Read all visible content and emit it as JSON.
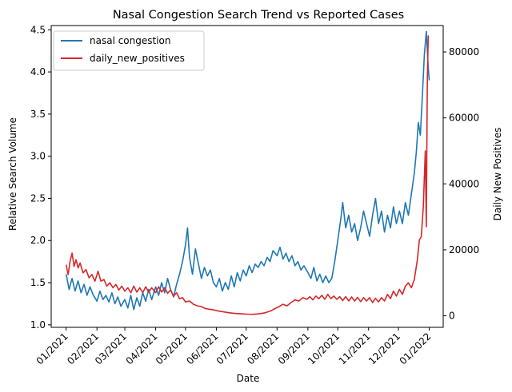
{
  "chart_data": {
    "type": "line",
    "title": "Nasal Congestion Search Trend vs Reported Cases",
    "xlabel": "Date",
    "ylabel_left": "Relative Search Volume",
    "ylabel_right": "Daily New Positives",
    "x_tick_labels": [
      "01/2021",
      "02/2021",
      "03/2021",
      "04/2021",
      "05/2021",
      "06/2021",
      "07/2021",
      "08/2021",
      "09/2021",
      "10/2021",
      "11/2021",
      "12/2021",
      "01/2022"
    ],
    "y_left_ticks": [
      1.0,
      1.5,
      2.0,
      2.5,
      3.0,
      3.5,
      4.0,
      4.5
    ],
    "y_right_ticks": [
      0,
      20000,
      40000,
      60000,
      80000
    ],
    "y_left_range": [
      0.97,
      4.55
    ],
    "y_right_range": [
      -3500,
      88000
    ],
    "x_range": [
      "2020-12-17",
      "2022-01-15"
    ],
    "legend_position": "upper-left",
    "colors": {
      "search": "#1f77b4",
      "cases": "#d62728"
    },
    "series": [
      {
        "name": "nasal congestion",
        "axis": "left",
        "points": [
          [
            "2021-01-01",
            1.6
          ],
          [
            "2021-01-04",
            1.42
          ],
          [
            "2021-01-07",
            1.55
          ],
          [
            "2021-01-10",
            1.4
          ],
          [
            "2021-01-13",
            1.52
          ],
          [
            "2021-01-16",
            1.38
          ],
          [
            "2021-01-19",
            1.48
          ],
          [
            "2021-01-22",
            1.35
          ],
          [
            "2021-01-25",
            1.45
          ],
          [
            "2021-01-28",
            1.36
          ],
          [
            "2021-02-01",
            1.28
          ],
          [
            "2021-02-04",
            1.4
          ],
          [
            "2021-02-07",
            1.3
          ],
          [
            "2021-02-10",
            1.35
          ],
          [
            "2021-02-13",
            1.27
          ],
          [
            "2021-02-16",
            1.38
          ],
          [
            "2021-02-19",
            1.25
          ],
          [
            "2021-02-22",
            1.33
          ],
          [
            "2021-02-25",
            1.22
          ],
          [
            "2021-03-01",
            1.3
          ],
          [
            "2021-03-04",
            1.2
          ],
          [
            "2021-03-07",
            1.35
          ],
          [
            "2021-03-10",
            1.18
          ],
          [
            "2021-03-13",
            1.32
          ],
          [
            "2021-03-16",
            1.22
          ],
          [
            "2021-03-19",
            1.38
          ],
          [
            "2021-03-22",
            1.28
          ],
          [
            "2021-03-25",
            1.42
          ],
          [
            "2021-03-28",
            1.3
          ],
          [
            "2021-04-01",
            1.45
          ],
          [
            "2021-04-04",
            1.35
          ],
          [
            "2021-04-07",
            1.5
          ],
          [
            "2021-04-10",
            1.38
          ],
          [
            "2021-04-13",
            1.55
          ],
          [
            "2021-04-16",
            1.42
          ],
          [
            "2021-04-19",
            1.33
          ],
          [
            "2021-04-22",
            1.48
          ],
          [
            "2021-04-25",
            1.6
          ],
          [
            "2021-04-28",
            1.75
          ],
          [
            "2021-05-01",
            1.95
          ],
          [
            "2021-05-03",
            2.15
          ],
          [
            "2021-05-05",
            1.8
          ],
          [
            "2021-05-08",
            1.6
          ],
          [
            "2021-05-11",
            1.9
          ],
          [
            "2021-05-14",
            1.72
          ],
          [
            "2021-05-17",
            1.55
          ],
          [
            "2021-05-20",
            1.68
          ],
          [
            "2021-05-23",
            1.58
          ],
          [
            "2021-05-26",
            1.65
          ],
          [
            "2021-05-29",
            1.5
          ],
          [
            "2021-06-01",
            1.45
          ],
          [
            "2021-06-04",
            1.55
          ],
          [
            "2021-06-07",
            1.4
          ],
          [
            "2021-06-10",
            1.5
          ],
          [
            "2021-06-13",
            1.42
          ],
          [
            "2021-06-16",
            1.58
          ],
          [
            "2021-06-19",
            1.45
          ],
          [
            "2021-06-22",
            1.62
          ],
          [
            "2021-06-25",
            1.52
          ],
          [
            "2021-06-28",
            1.65
          ],
          [
            "2021-07-01",
            1.58
          ],
          [
            "2021-07-04",
            1.7
          ],
          [
            "2021-07-07",
            1.62
          ],
          [
            "2021-07-10",
            1.72
          ],
          [
            "2021-07-13",
            1.68
          ],
          [
            "2021-07-16",
            1.75
          ],
          [
            "2021-07-19",
            1.7
          ],
          [
            "2021-07-22",
            1.8
          ],
          [
            "2021-07-25",
            1.75
          ],
          [
            "2021-07-28",
            1.88
          ],
          [
            "2021-08-01",
            1.82
          ],
          [
            "2021-08-04",
            1.92
          ],
          [
            "2021-08-07",
            1.78
          ],
          [
            "2021-08-10",
            1.85
          ],
          [
            "2021-08-13",
            1.75
          ],
          [
            "2021-08-16",
            1.82
          ],
          [
            "2021-08-19",
            1.7
          ],
          [
            "2021-08-22",
            1.75
          ],
          [
            "2021-08-25",
            1.65
          ],
          [
            "2021-08-28",
            1.7
          ],
          [
            "2021-09-01",
            1.62
          ],
          [
            "2021-09-04",
            1.55
          ],
          [
            "2021-09-07",
            1.68
          ],
          [
            "2021-09-10",
            1.52
          ],
          [
            "2021-09-13",
            1.6
          ],
          [
            "2021-09-16",
            1.5
          ],
          [
            "2021-09-19",
            1.58
          ],
          [
            "2021-09-22",
            1.5
          ],
          [
            "2021-09-25",
            1.55
          ],
          [
            "2021-09-28",
            1.75
          ],
          [
            "2021-10-01",
            2.0
          ],
          [
            "2021-10-04",
            2.25
          ],
          [
            "2021-10-06",
            2.45
          ],
          [
            "2021-10-09",
            2.15
          ],
          [
            "2021-10-12",
            2.3
          ],
          [
            "2021-10-15",
            2.1
          ],
          [
            "2021-10-18",
            2.2
          ],
          [
            "2021-10-21",
            2.0
          ],
          [
            "2021-10-24",
            2.15
          ],
          [
            "2021-10-27",
            2.35
          ],
          [
            "2021-10-30",
            2.2
          ],
          [
            "2021-11-02",
            2.05
          ],
          [
            "2021-11-05",
            2.3
          ],
          [
            "2021-11-08",
            2.5
          ],
          [
            "2021-11-11",
            2.2
          ],
          [
            "2021-11-14",
            2.35
          ],
          [
            "2021-11-17",
            2.1
          ],
          [
            "2021-11-20",
            2.3
          ],
          [
            "2021-11-23",
            2.15
          ],
          [
            "2021-11-26",
            2.4
          ],
          [
            "2021-11-29",
            2.2
          ],
          [
            "2021-12-02",
            2.35
          ],
          [
            "2021-12-05",
            2.2
          ],
          [
            "2021-12-08",
            2.45
          ],
          [
            "2021-12-11",
            2.3
          ],
          [
            "2021-12-14",
            2.55
          ],
          [
            "2021-12-17",
            2.8
          ],
          [
            "2021-12-19",
            3.05
          ],
          [
            "2021-12-21",
            3.4
          ],
          [
            "2021-12-23",
            3.25
          ],
          [
            "2021-12-25",
            3.7
          ],
          [
            "2021-12-27",
            4.2
          ],
          [
            "2021-12-29",
            4.48
          ],
          [
            "2021-12-31",
            4.05
          ],
          [
            "2022-01-01",
            3.9
          ]
        ]
      },
      {
        "name": "daily_new_positives",
        "axis": "right",
        "points": [
          [
            "2021-01-01",
            15500
          ],
          [
            "2021-01-03",
            12500
          ],
          [
            "2021-01-05",
            16500
          ],
          [
            "2021-01-07",
            19000
          ],
          [
            "2021-01-09",
            15000
          ],
          [
            "2021-01-11",
            17000
          ],
          [
            "2021-01-13",
            14500
          ],
          [
            "2021-01-15",
            16000
          ],
          [
            "2021-01-18",
            13000
          ],
          [
            "2021-01-21",
            14000
          ],
          [
            "2021-01-24",
            11500
          ],
          [
            "2021-01-27",
            12500
          ],
          [
            "2021-01-30",
            10500
          ],
          [
            "2021-02-02",
            13500
          ],
          [
            "2021-02-05",
            10500
          ],
          [
            "2021-02-08",
            11000
          ],
          [
            "2021-02-11",
            9000
          ],
          [
            "2021-02-14",
            10000
          ],
          [
            "2021-02-17",
            8500
          ],
          [
            "2021-02-20",
            9500
          ],
          [
            "2021-02-23",
            7800
          ],
          [
            "2021-02-26",
            9000
          ],
          [
            "2021-03-01",
            7500
          ],
          [
            "2021-03-04",
            8500
          ],
          [
            "2021-03-07",
            7000
          ],
          [
            "2021-03-10",
            9000
          ],
          [
            "2021-03-13",
            7200
          ],
          [
            "2021-03-16",
            8500
          ],
          [
            "2021-03-19",
            7000
          ],
          [
            "2021-03-22",
            8800
          ],
          [
            "2021-03-25",
            7200
          ],
          [
            "2021-03-28",
            8500
          ],
          [
            "2021-04-01",
            7000
          ],
          [
            "2021-04-04",
            8800
          ],
          [
            "2021-04-07",
            7200
          ],
          [
            "2021-04-10",
            8500
          ],
          [
            "2021-04-13",
            6800
          ],
          [
            "2021-04-16",
            7800
          ],
          [
            "2021-04-19",
            6000
          ],
          [
            "2021-04-22",
            7000
          ],
          [
            "2021-04-25",
            5200
          ],
          [
            "2021-04-28",
            5500
          ],
          [
            "2021-05-01",
            4200
          ],
          [
            "2021-05-05",
            4500
          ],
          [
            "2021-05-09",
            3500
          ],
          [
            "2021-05-13",
            3000
          ],
          [
            "2021-05-17",
            2800
          ],
          [
            "2021-05-21",
            2200
          ],
          [
            "2021-05-25",
            2000
          ],
          [
            "2021-05-29",
            1800
          ],
          [
            "2021-06-02",
            1500
          ],
          [
            "2021-06-08",
            1200
          ],
          [
            "2021-06-14",
            900
          ],
          [
            "2021-06-20",
            700
          ],
          [
            "2021-06-26",
            600
          ],
          [
            "2021-07-02",
            500
          ],
          [
            "2021-07-08",
            450
          ],
          [
            "2021-07-14",
            600
          ],
          [
            "2021-07-20",
            900
          ],
          [
            "2021-07-26",
            1500
          ],
          [
            "2021-07-30",
            2200
          ],
          [
            "2021-08-03",
            2800
          ],
          [
            "2021-08-07",
            3500
          ],
          [
            "2021-08-11",
            3000
          ],
          [
            "2021-08-15",
            4000
          ],
          [
            "2021-08-19",
            4800
          ],
          [
            "2021-08-23",
            4500
          ],
          [
            "2021-08-27",
            5500
          ],
          [
            "2021-08-31",
            5000
          ],
          [
            "2021-09-03",
            5800
          ],
          [
            "2021-09-06",
            4800
          ],
          [
            "2021-09-09",
            6000
          ],
          [
            "2021-09-12",
            5200
          ],
          [
            "2021-09-15",
            6200
          ],
          [
            "2021-09-18",
            5000
          ],
          [
            "2021-09-21",
            6500
          ],
          [
            "2021-09-24",
            5200
          ],
          [
            "2021-09-27",
            6000
          ],
          [
            "2021-09-30",
            5000
          ],
          [
            "2021-10-03",
            5800
          ],
          [
            "2021-10-06",
            4600
          ],
          [
            "2021-10-09",
            5800
          ],
          [
            "2021-10-12",
            4500
          ],
          [
            "2021-10-15",
            5700
          ],
          [
            "2021-10-18",
            4500
          ],
          [
            "2021-10-21",
            5600
          ],
          [
            "2021-10-24",
            4300
          ],
          [
            "2021-10-27",
            5500
          ],
          [
            "2021-10-30",
            4500
          ],
          [
            "2021-11-02",
            5500
          ],
          [
            "2021-11-05",
            4000
          ],
          [
            "2021-11-08",
            5300
          ],
          [
            "2021-11-11",
            4200
          ],
          [
            "2021-11-14",
            5500
          ],
          [
            "2021-11-17",
            4500
          ],
          [
            "2021-11-20",
            6500
          ],
          [
            "2021-11-23",
            5200
          ],
          [
            "2021-11-26",
            7500
          ],
          [
            "2021-11-29",
            6000
          ],
          [
            "2021-12-02",
            8000
          ],
          [
            "2021-12-05",
            6500
          ],
          [
            "2021-12-08",
            9000
          ],
          [
            "2021-12-11",
            10000
          ],
          [
            "2021-12-14",
            8500
          ],
          [
            "2021-12-17",
            11000
          ],
          [
            "2021-12-20",
            17000
          ],
          [
            "2021-12-22",
            23000
          ],
          [
            "2021-12-24",
            24000
          ],
          [
            "2021-12-26",
            33000
          ],
          [
            "2021-12-28",
            50000
          ],
          [
            "2021-12-29",
            27000
          ],
          [
            "2021-12-30",
            70000
          ],
          [
            "2021-12-31",
            85000
          ]
        ]
      }
    ]
  }
}
